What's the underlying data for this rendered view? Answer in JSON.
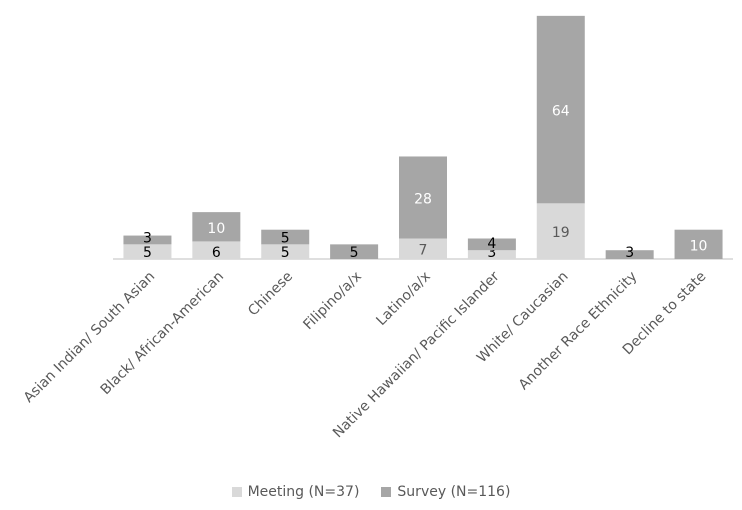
{
  "chart_data": {
    "type": "bar",
    "stacked": true,
    "categories": [
      "Asian Indian/ South Asian",
      "Black/ African-American",
      "Chinese",
      "Filipino/a/x",
      "Latino/a/x",
      "Native Hawaiian/ Pacific Islander",
      "White/ Caucasian",
      "Another Race Ethnicity",
      "Decline to state"
    ],
    "series": [
      {
        "name": "Meeting (N=37)",
        "color": "#d9d9d9",
        "values": [
          5,
          6,
          5,
          0,
          7,
          3,
          19,
          0,
          0
        ],
        "labels": [
          "5",
          "6",
          "5",
          "",
          "7",
          "3",
          "19",
          "",
          ""
        ]
      },
      {
        "name": "Survey (N=116)",
        "color": "#a6a6a6",
        "values": [
          3,
          10,
          5,
          5,
          28,
          4,
          64,
          3,
          10
        ],
        "labels": [
          "3",
          "10",
          "5",
          "5",
          "28",
          "4",
          "64",
          "3",
          "10"
        ]
      }
    ],
    "ylim": [
      0,
      85
    ],
    "grid": false,
    "legend": "bottom-center",
    "title": "",
    "xlabel": "",
    "ylabel": ""
  }
}
